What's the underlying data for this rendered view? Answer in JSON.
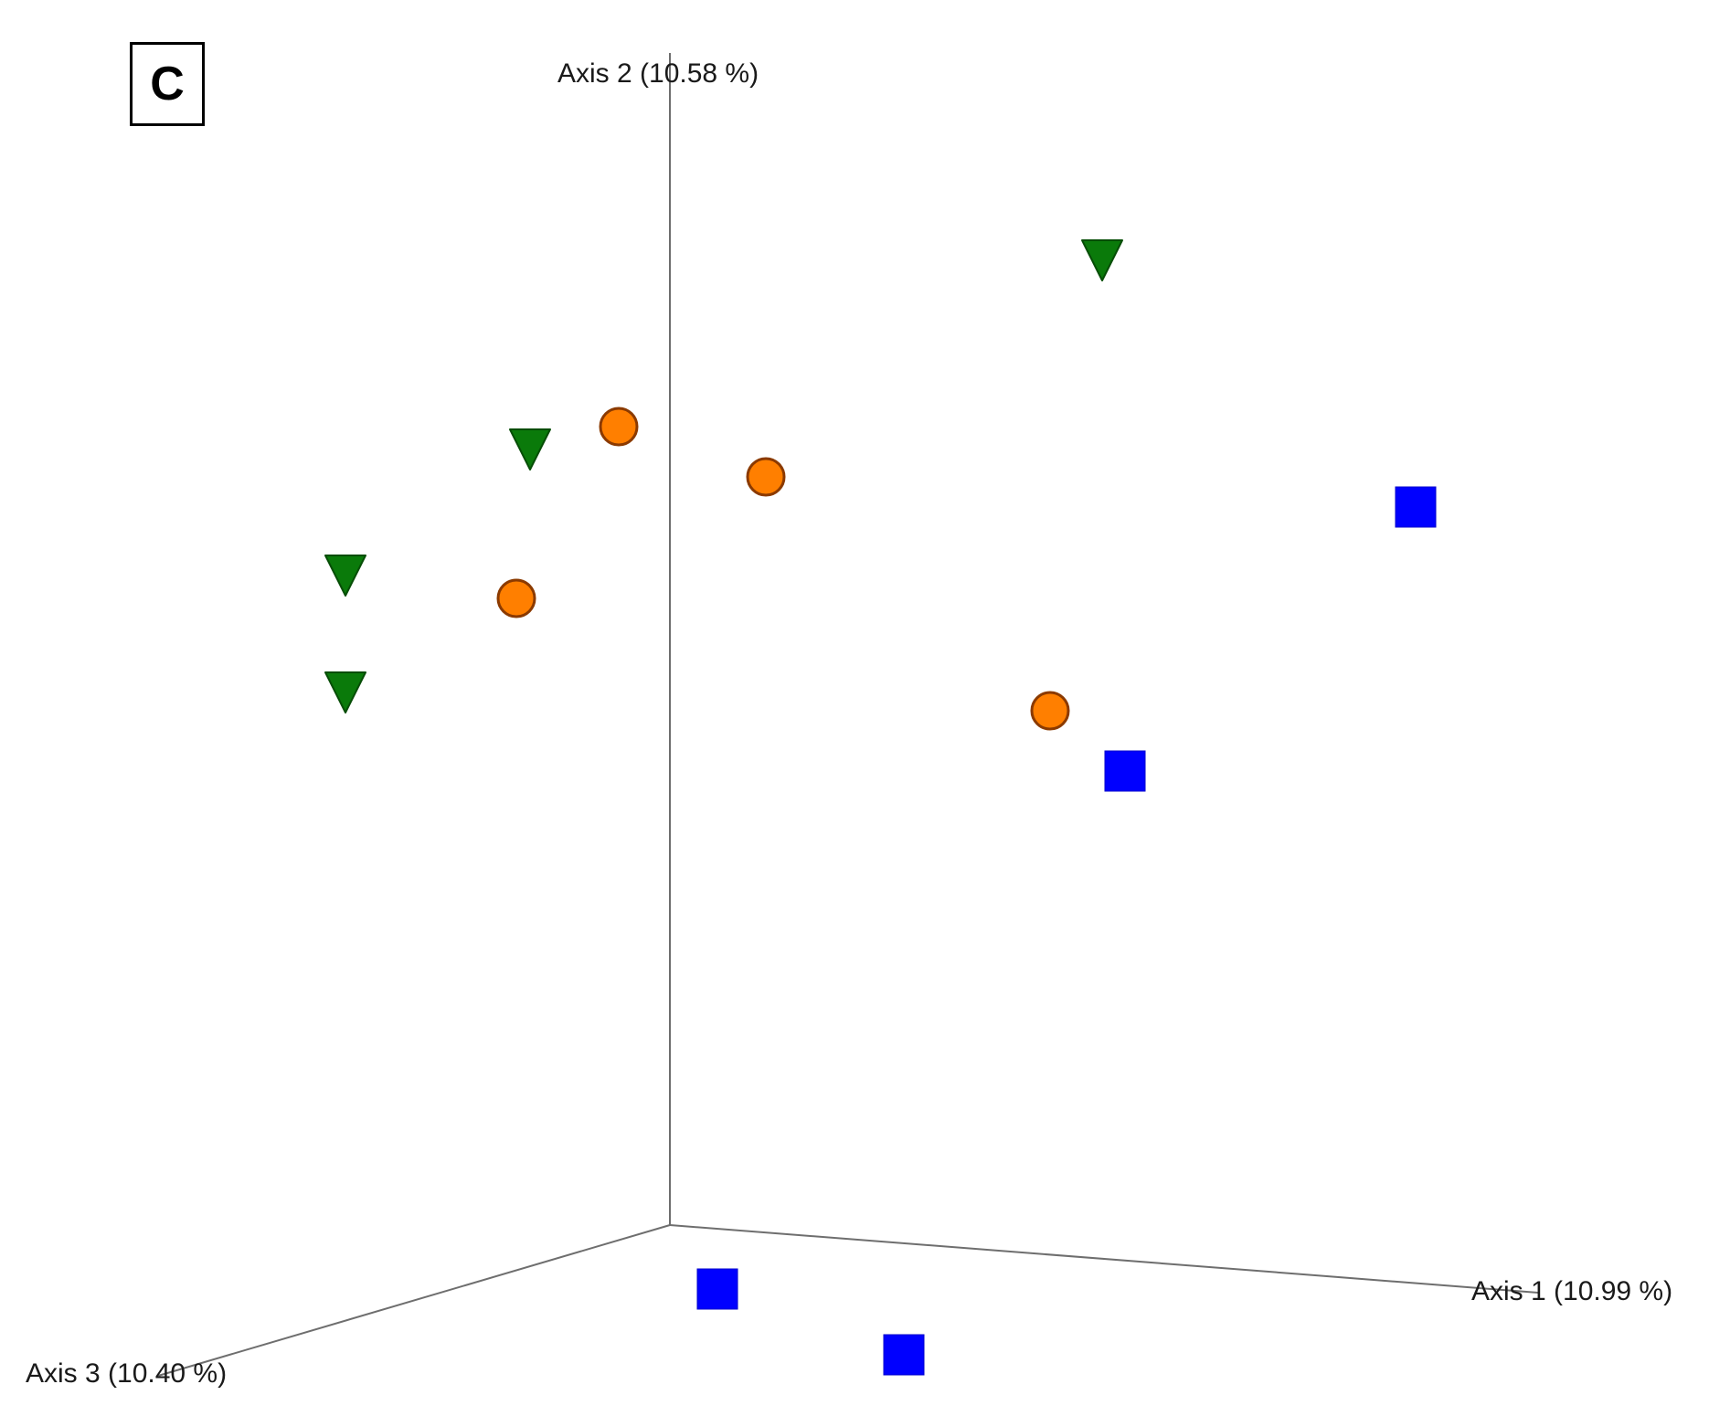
{
  "panel_label": "C",
  "chart_data": {
    "type": "scatter",
    "projection": "3d",
    "title": "",
    "axes": [
      {
        "id": "axis1",
        "label": "Axis 1 (10.99 %)"
      },
      {
        "id": "axis2",
        "label": "Axis 2 (10.58 %)"
      },
      {
        "id": "axis3",
        "label": "Axis 3 (10.40 %)"
      }
    ],
    "legend": "none",
    "grid": false,
    "series": [
      {
        "marker": "triangle-down",
        "color": "#0a7a0a",
        "stroke": "#064d06",
        "points": [
          {
            "x": 1206,
            "y": 283
          },
          {
            "x": 580,
            "y": 490
          },
          {
            "x": 378,
            "y": 628
          },
          {
            "x": 378,
            "y": 756
          }
        ]
      },
      {
        "marker": "circle",
        "color": "#ff7f00",
        "stroke": "#8b3a00",
        "points": [
          {
            "x": 677,
            "y": 467
          },
          {
            "x": 838,
            "y": 522
          },
          {
            "x": 565,
            "y": 655
          },
          {
            "x": 1149,
            "y": 778
          }
        ]
      },
      {
        "marker": "square",
        "color": "#0000ff",
        "stroke": "#0000cc",
        "points": [
          {
            "x": 1549,
            "y": 555
          },
          {
            "x": 1231,
            "y": 844
          },
          {
            "x": 785,
            "y": 1411
          },
          {
            "x": 989,
            "y": 1483
          }
        ]
      }
    ]
  }
}
